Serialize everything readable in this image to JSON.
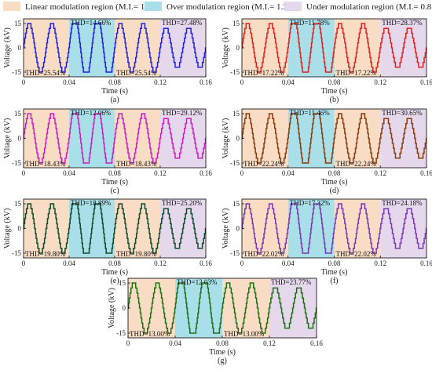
{
  "legend": {
    "items": [
      {
        "label": "Linear modulation region (M.I.= 1)",
        "color": "#f9dcc4"
      },
      {
        "label": "Over modulation region (M.I.= 1.3)",
        "color": "#a9dfe8"
      },
      {
        "label": "Under modulation region (M.I.= 0.85)",
        "color": "#e5d8ec"
      }
    ]
  },
  "chart_data": [
    {
      "type": "line",
      "panel": "(a)",
      "color": "#1f1fe0",
      "xlabel": "Time (s)",
      "ylabel": "Voltage (kV)",
      "xlim": [
        0,
        0.16
      ],
      "ylim": [
        -15,
        15
      ],
      "xticks": [
        "0",
        "0.04",
        "0.08",
        "0.12",
        "0.16"
      ],
      "yticks": [
        "15",
        "0",
        "-15"
      ],
      "regions": [
        {
          "region": "linear",
          "x": [
            0,
            0.04
          ]
        },
        {
          "region": "over",
          "x": [
            0.04,
            0.08
          ]
        },
        {
          "region": "linear",
          "x": [
            0.08,
            0.12
          ]
        },
        {
          "region": "under",
          "x": [
            0.12,
            0.16
          ]
        }
      ],
      "thd_labels": [
        "THD=25.54%",
        "THD=14.66%",
        "THD=25.54%",
        "THD=27.48%"
      ]
    },
    {
      "type": "line",
      "panel": "(b)",
      "color": "#e0201c",
      "xlabel": "Time (s)",
      "ylabel": "Voltage (kV)",
      "xlim": [
        0,
        0.16
      ],
      "ylim": [
        -15,
        15
      ],
      "xticks": [
        "0",
        "0.04",
        "0.08",
        "0.12",
        "0.16"
      ],
      "yticks": [
        "15",
        "0",
        "-15"
      ],
      "regions": [
        {
          "region": "linear",
          "x": [
            0,
            0.04
          ]
        },
        {
          "region": "over",
          "x": [
            0.04,
            0.08
          ]
        },
        {
          "region": "linear",
          "x": [
            0.08,
            0.12
          ]
        },
        {
          "region": "under",
          "x": [
            0.12,
            0.16
          ]
        }
      ],
      "thd_labels": [
        "THD=17.22%",
        "THD=11.78%",
        "THD=17.22%",
        "THD=28.37%"
      ]
    },
    {
      "type": "line",
      "panel": "(c)",
      "color": "#cc1cc4",
      "xlabel": "Time (s)",
      "ylabel": "Voltage (kV)",
      "xlim": [
        0,
        0.16
      ],
      "ylim": [
        -15,
        15
      ],
      "xticks": [
        "0",
        "0.04",
        "0.08",
        "0.12",
        "0.16"
      ],
      "yticks": [
        "15",
        "0",
        "-15"
      ],
      "regions": [
        {
          "region": "linear",
          "x": [
            0,
            0.04
          ]
        },
        {
          "region": "over",
          "x": [
            0.04,
            0.08
          ]
        },
        {
          "region": "linear",
          "x": [
            0.08,
            0.12
          ]
        },
        {
          "region": "under",
          "x": [
            0.12,
            0.16
          ]
        }
      ],
      "thd_labels": [
        "THD=18.43%",
        "THD=12.06%",
        "THD=18.43%",
        "THD=29.12%"
      ]
    },
    {
      "type": "line",
      "panel": "(d)",
      "color": "#8a3a0c",
      "xlabel": "Time (s)",
      "ylabel": "Voltage (kV)",
      "xlim": [
        0,
        0.16
      ],
      "ylim": [
        -15,
        15
      ],
      "xticks": [
        "0",
        "0.04",
        "0.08",
        "0.12",
        "0.16"
      ],
      "yticks": [
        "15",
        "0",
        "-15"
      ],
      "regions": [
        {
          "region": "linear",
          "x": [
            0,
            0.04
          ]
        },
        {
          "region": "over",
          "x": [
            0.04,
            0.08
          ]
        },
        {
          "region": "linear",
          "x": [
            0.08,
            0.12
          ]
        },
        {
          "region": "under",
          "x": [
            0.12,
            0.16
          ]
        }
      ],
      "thd_labels": [
        "THD=22.24%",
        "THD=11.46%",
        "THD=22.24%",
        "THD=30.65%"
      ]
    },
    {
      "type": "line",
      "panel": "(e)",
      "color": "#0c4a2a",
      "xlabel": "Time (s)",
      "ylabel": "Voltage (kV)",
      "xlim": [
        0,
        0.16
      ],
      "ylim": [
        -15,
        15
      ],
      "xticks": [
        "0",
        "0.04",
        "0.08",
        "0.12",
        "0.16"
      ],
      "yticks": [
        "15",
        "0",
        "-15"
      ],
      "regions": [
        {
          "region": "linear",
          "x": [
            0,
            0.04
          ]
        },
        {
          "region": "over",
          "x": [
            0.04,
            0.08
          ]
        },
        {
          "region": "linear",
          "x": [
            0.08,
            0.12
          ]
        },
        {
          "region": "under",
          "x": [
            0.12,
            0.16
          ]
        }
      ],
      "thd_labels": [
        "THD=19.80%",
        "THD=18.89%",
        "THD=19.80%",
        "THD=25.20%"
      ]
    },
    {
      "type": "line",
      "panel": "(f)",
      "color": "#7a36b4",
      "xlabel": "Time (s)",
      "ylabel": "Voltage (kV)",
      "xlim": [
        0,
        0.16
      ],
      "ylim": [
        -15,
        15
      ],
      "xticks": [
        "0",
        "0.04",
        "0.08",
        "0.12",
        "0.16"
      ],
      "yticks": [
        "15",
        "0",
        "-15"
      ],
      "regions": [
        {
          "region": "linear",
          "x": [
            0,
            0.04
          ]
        },
        {
          "region": "over",
          "x": [
            0.04,
            0.08
          ]
        },
        {
          "region": "linear",
          "x": [
            0.08,
            0.12
          ]
        },
        {
          "region": "under",
          "x": [
            0.12,
            0.16
          ]
        }
      ],
      "thd_labels": [
        "THD=22.02%",
        "THD=17.32%",
        "THD=22.02%",
        "THD=24.18%"
      ]
    },
    {
      "type": "line",
      "panel": "(g)",
      "color": "#1f6e14",
      "xlabel": "Time (s)",
      "ylabel": "Voltage (kV)",
      "xlim": [
        0,
        0.16
      ],
      "ylim": [
        -15,
        15
      ],
      "xticks": [
        "0",
        "0.04",
        "0.08",
        "0.12",
        "0.16"
      ],
      "yticks": [
        "15",
        "0",
        "-15"
      ],
      "regions": [
        {
          "region": "linear",
          "x": [
            0,
            0.04
          ]
        },
        {
          "region": "over",
          "x": [
            0.04,
            0.08
          ]
        },
        {
          "region": "linear",
          "x": [
            0.08,
            0.12
          ]
        },
        {
          "region": "under",
          "x": [
            0.12,
            0.16
          ]
        }
      ],
      "thd_labels": [
        "THD=13.00%",
        "THD=12.03%",
        "THD=13.00%",
        "THD=23.77%"
      ]
    }
  ]
}
